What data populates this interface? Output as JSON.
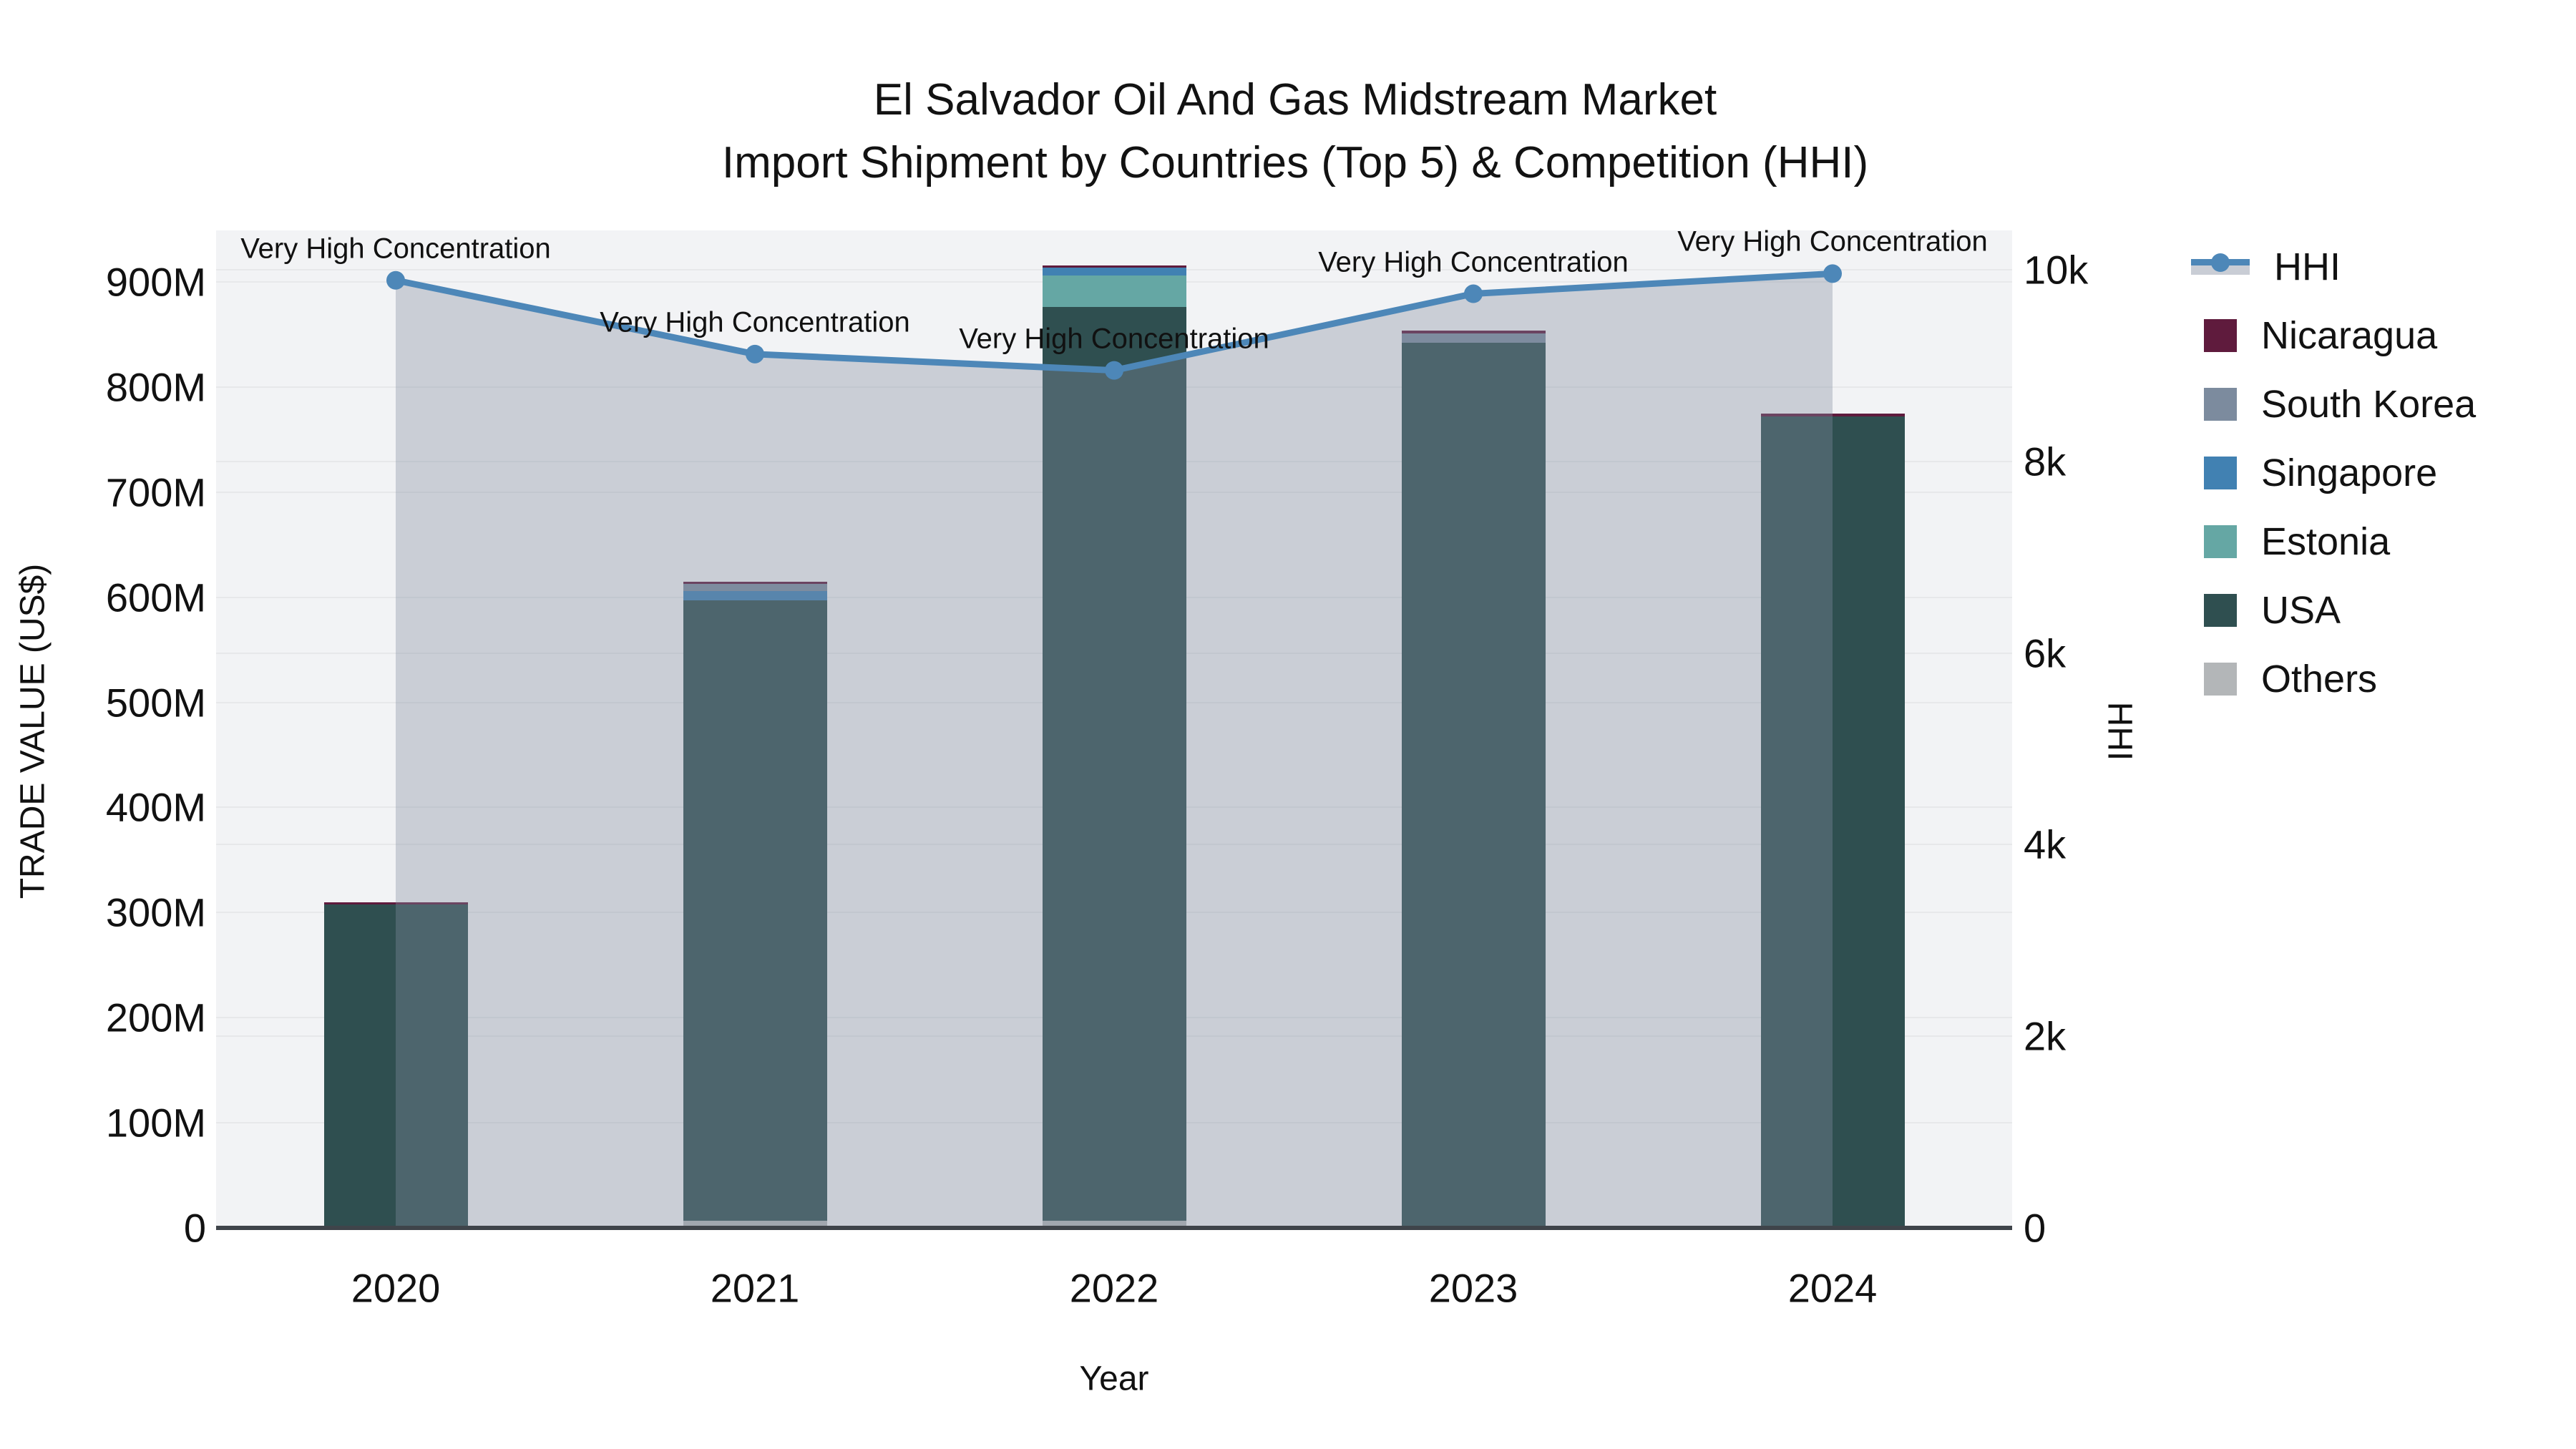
{
  "title": {
    "line1": "El Salvador Oil And Gas Midstream Market",
    "line2": "Import Shipment by Countries (Top 5) & Competition (HHI)"
  },
  "axes": {
    "x": {
      "title": "Year",
      "tick_labels": [
        "2020",
        "2021",
        "2022",
        "2023",
        "2024"
      ]
    },
    "y_left": {
      "title": "TRADE VALUE (US$)",
      "tick_labels": [
        "0",
        "100M",
        "200M",
        "300M",
        "400M",
        "500M",
        "600M",
        "700M",
        "800M",
        "900M"
      ],
      "tick_step_m": 100,
      "max_m": 949
    },
    "y_right": {
      "title": "HHI",
      "tick_labels": [
        "0",
        "2k",
        "4k",
        "6k",
        "8k",
        "10k"
      ],
      "tick_step": 2000,
      "max": 10411
    }
  },
  "legend": {
    "items": [
      {
        "label": "HHI",
        "type": "line",
        "color": "#4d87b8"
      },
      {
        "label": "Nicaragua",
        "type": "swatch",
        "color": "#5f1b3d"
      },
      {
        "label": "South Korea",
        "type": "swatch",
        "color": "#7c8b9e"
      },
      {
        "label": "Singapore",
        "type": "swatch",
        "color": "#4181b2"
      },
      {
        "label": "Estonia",
        "type": "swatch",
        "color": "#65a7a4"
      },
      {
        "label": "USA",
        "type": "swatch",
        "color": "#2f4f50"
      },
      {
        "label": "Others",
        "type": "swatch",
        "color": "#b3b6b8"
      }
    ]
  },
  "chart_data": {
    "type": "bar+line",
    "categories": [
      "2020",
      "2021",
      "2022",
      "2023",
      "2024"
    ],
    "bar_value_unit": "million US$",
    "bar_stack_order_bottom_to_top": [
      "Others",
      "USA",
      "Estonia",
      "Singapore",
      "South Korea",
      "Nicaragua"
    ],
    "series": [
      {
        "name": "Others",
        "color": "#b3b6b8",
        "values": [
          0,
          7,
          7,
          0,
          0
        ]
      },
      {
        "name": "USA",
        "color": "#2f4f50",
        "values": [
          307.5,
          590,
          869,
          842,
          772
        ]
      },
      {
        "name": "Estonia",
        "color": "#65a7a4",
        "values": [
          0,
          0,
          30,
          0,
          0
        ]
      },
      {
        "name": "Singapore",
        "color": "#4181b2",
        "values": [
          0,
          9,
          7.5,
          0,
          0
        ]
      },
      {
        "name": "South Korea",
        "color": "#7c8b9e",
        "values": [
          0,
          7,
          0,
          9,
          0
        ]
      },
      {
        "name": "Nicaragua",
        "color": "#5f1b3d",
        "values": [
          2.5,
          2,
          2,
          2.5,
          3
        ]
      }
    ],
    "bar_totals_m": [
      310,
      615,
      915.5,
      853.5,
      775
    ],
    "line": {
      "name": "HHI",
      "color": "#4d87b8",
      "fill_color": "rgba(130,140,160,0.36)",
      "values": [
        9890,
        9120,
        8950,
        9750,
        9960
      ]
    },
    "annotations": [
      {
        "text": "Very High Concentration",
        "category": "2020"
      },
      {
        "text": "Very High Concentration",
        "category": "2021"
      },
      {
        "text": "Very High Concentration",
        "category": "2022"
      },
      {
        "text": "Very High Concentration",
        "category": "2023"
      },
      {
        "text": "Very High Concentration",
        "category": "2024"
      }
    ],
    "title": "El Salvador Oil And Gas Midstream Market — Import Shipment by Countries (Top 5) & Competition (HHI)",
    "xlabel": "Year",
    "ylabel_left": "TRADE VALUE (US$)",
    "ylabel_right": "HHI",
    "ylim_left_m": [
      0,
      949
    ],
    "ylim_right": [
      0,
      10411
    ],
    "grid": true,
    "legend_position": "right"
  }
}
